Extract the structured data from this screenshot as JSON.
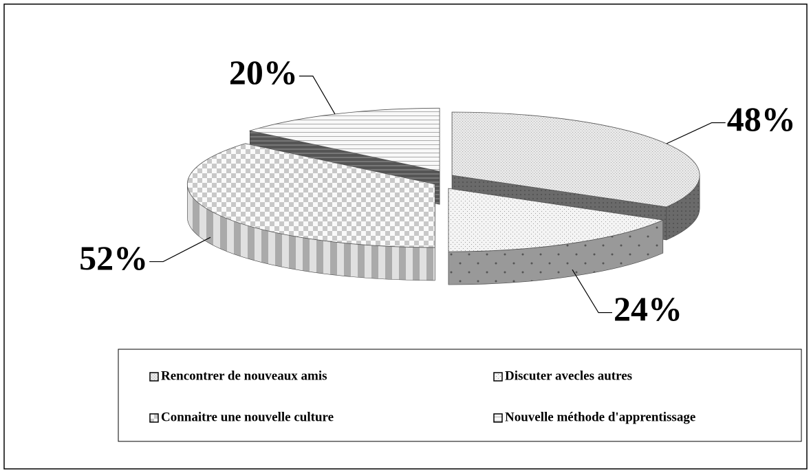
{
  "chart_data": {
    "type": "pie3d",
    "categories": [
      "Rencontrer de nouveaux amis",
      "Discuter avecles autres",
      "Connaitre une nouvelle culture",
      "Nouvelle méthode d'apprentissage"
    ],
    "values": [
      48,
      24,
      52,
      20
    ],
    "value_labels": [
      "48%",
      "24%",
      "52%",
      "20%"
    ],
    "legend": "bottom"
  }
}
